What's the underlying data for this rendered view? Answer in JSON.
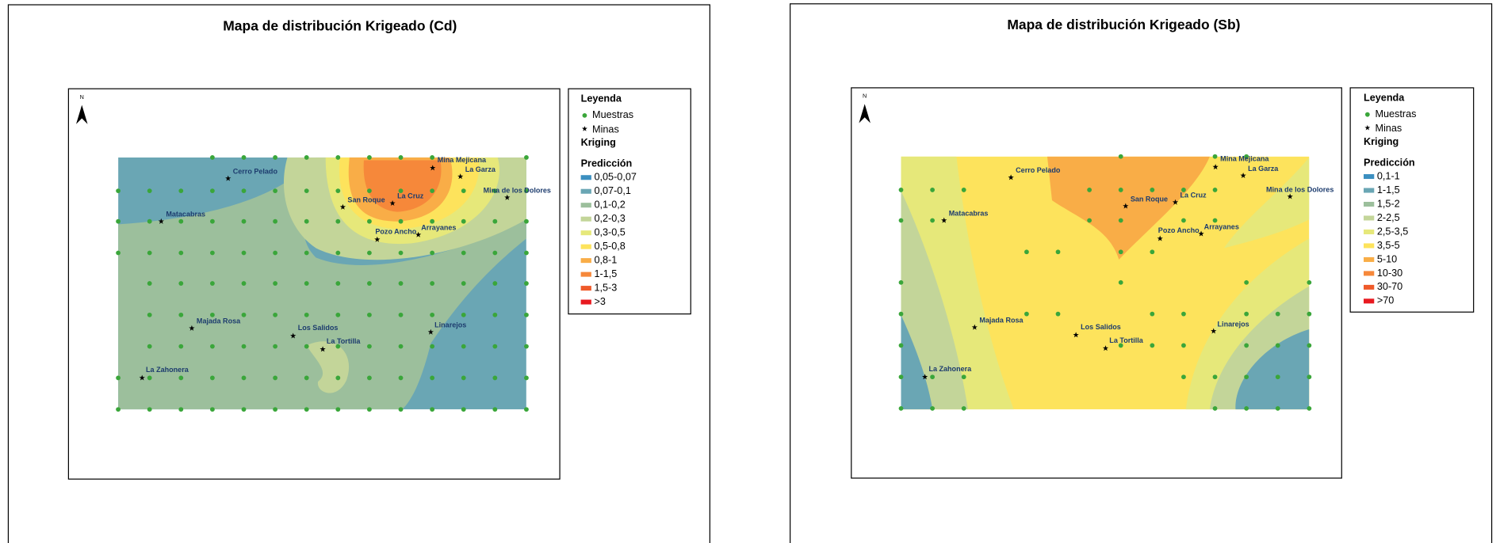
{
  "maps": [
    {
      "title": "Mapa de distribución Krigeado (Cd)",
      "north": "N",
      "legend": {
        "title": "Leyenda",
        "samples": "Muestras",
        "mines": "Minas",
        "method": "Kriging",
        "prediction": "Predicción",
        "classes": [
          {
            "label": "0,05-0,07",
            "color": "#3b8fc0"
          },
          {
            "label": "0,07-0,1",
            "color": "#6aa6b4"
          },
          {
            "label": "0,1-0,2",
            "color": "#9cbf9c"
          },
          {
            "label": "0,2-0,3",
            "color": "#c3d599"
          },
          {
            "label": "0,3-0,5",
            "color": "#e6e87a"
          },
          {
            "label": "0,5-0,8",
            "color": "#fde35c"
          },
          {
            "label": "0,8-1",
            "color": "#f9ad47"
          },
          {
            "label": "1-1,5",
            "color": "#f6883a"
          },
          {
            "label": "1,5-3",
            "color": "#ef5a2a"
          },
          {
            "label": ">3",
            "color": "#e8191f"
          }
        ]
      },
      "places": [
        "Cerro Pelado",
        "Mina Mejicana",
        "La Garza",
        "Mina de los Dolores",
        "San Roque",
        "La Cruz",
        "Matacabras",
        "Pozo Ancho",
        "Arrayanes",
        "Majada Rosa",
        "Los Salidos",
        "La Tortilla",
        "Linarejos",
        "La Zahonera"
      ]
    },
    {
      "title": "Mapa de distribución Krigeado (Sb)",
      "north": "N",
      "legend": {
        "title": "Leyenda",
        "samples": "Muestras",
        "mines": "Minas",
        "method": "Kriging",
        "prediction": "Predicción",
        "classes": [
          {
            "label": "0,1-1",
            "color": "#3b8fc0"
          },
          {
            "label": "1-1,5",
            "color": "#6aa6b4"
          },
          {
            "label": "1,5-2",
            "color": "#9cbf9c"
          },
          {
            "label": "2-2,5",
            "color": "#c3d599"
          },
          {
            "label": "2,5-3,5",
            "color": "#e6e87a"
          },
          {
            "label": "3,5-5",
            "color": "#fde35c"
          },
          {
            "label": "5-10",
            "color": "#f9ad47"
          },
          {
            "label": "10-30",
            "color": "#f6883a"
          },
          {
            "label": "30-70",
            "color": "#ef5a2a"
          },
          {
            "label": ">70",
            "color": "#e8191f"
          }
        ]
      },
      "places": [
        "Cerro Pelado",
        "Mina Mejicana",
        "La Garza",
        "Mina de los Dolores",
        "San Roque",
        "La Cruz",
        "Matacabras",
        "Pozo Ancho",
        "Arrayanes",
        "Majada Rosa",
        "Los Salidos",
        "La Tortilla",
        "Linarejos",
        "La Zahonera"
      ]
    }
  ]
}
